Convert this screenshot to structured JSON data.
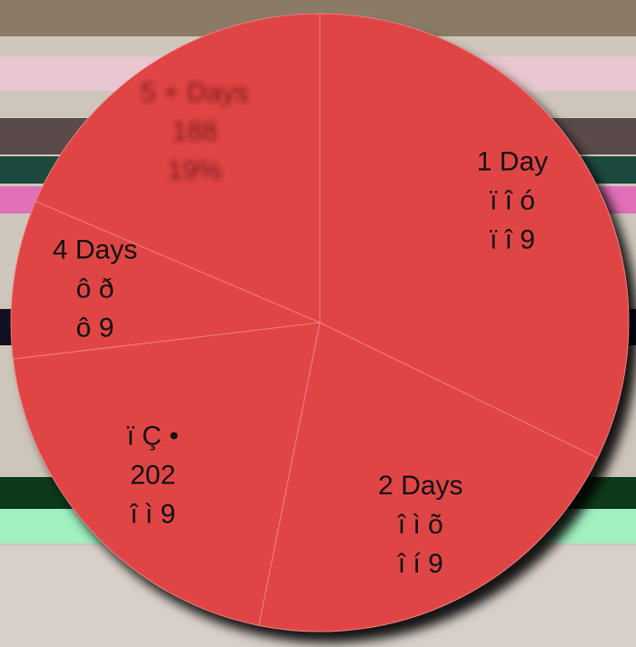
{
  "chart_data": {
    "type": "pie",
    "categories": [
      "1 Day",
      "2 Days",
      "ï      Ç •",
      "4 Days",
      "5 + Days"
    ],
    "values": [
      326,
      212,
      202,
      84,
      188
    ],
    "value_labels": [
      "ï î ó",
      "î ì õ",
      "202",
      "ô ð",
      "188"
    ],
    "percent_labels": [
      "ï î 9",
      "î í 9",
      "î ì 9",
      "ô 9",
      "19%"
    ],
    "color": "#e04444"
  }
}
